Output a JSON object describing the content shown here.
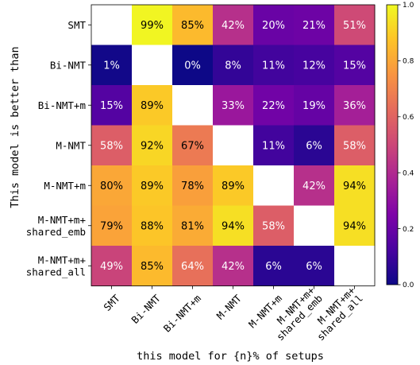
{
  "chart_data": {
    "type": "heatmap",
    "title": "",
    "xlabel": "this model for {n}% of setups",
    "ylabel": "This model is better than",
    "rows": [
      "SMT",
      "Bi-NMT",
      "Bi-NMT+m",
      "M-NMT",
      "M-NMT+m",
      "M-NMT+m+\nshared_emb",
      "M-NMT+m+\nshared_all"
    ],
    "cols": [
      "SMT",
      "Bi-NMT",
      "Bi-NMT+m",
      "M-NMT",
      "M-NMT+m",
      "M-NMT+m+\nshared_emb",
      "M-NMT+m+\nshared_all"
    ],
    "values": [
      [
        null,
        99,
        85,
        42,
        20,
        21,
        51
      ],
      [
        1,
        null,
        0,
        8,
        11,
        12,
        15
      ],
      [
        15,
        89,
        null,
        33,
        22,
        19,
        36
      ],
      [
        58,
        92,
        67,
        null,
        11,
        6,
        58
      ],
      [
        80,
        89,
        78,
        89,
        null,
        42,
        94
      ],
      [
        79,
        88,
        81,
        94,
        58,
        null,
        94
      ],
      [
        49,
        85,
        64,
        42,
        6,
        6,
        null
      ]
    ],
    "value_suffix": "%",
    "colormap": "plasma",
    "vmin": 0,
    "vmax": 1,
    "colorbar_ticks": [
      "0.0",
      "0.2",
      "0.4",
      "0.6",
      "0.8",
      "1.0"
    ],
    "grid": false,
    "colorbar": "right"
  }
}
